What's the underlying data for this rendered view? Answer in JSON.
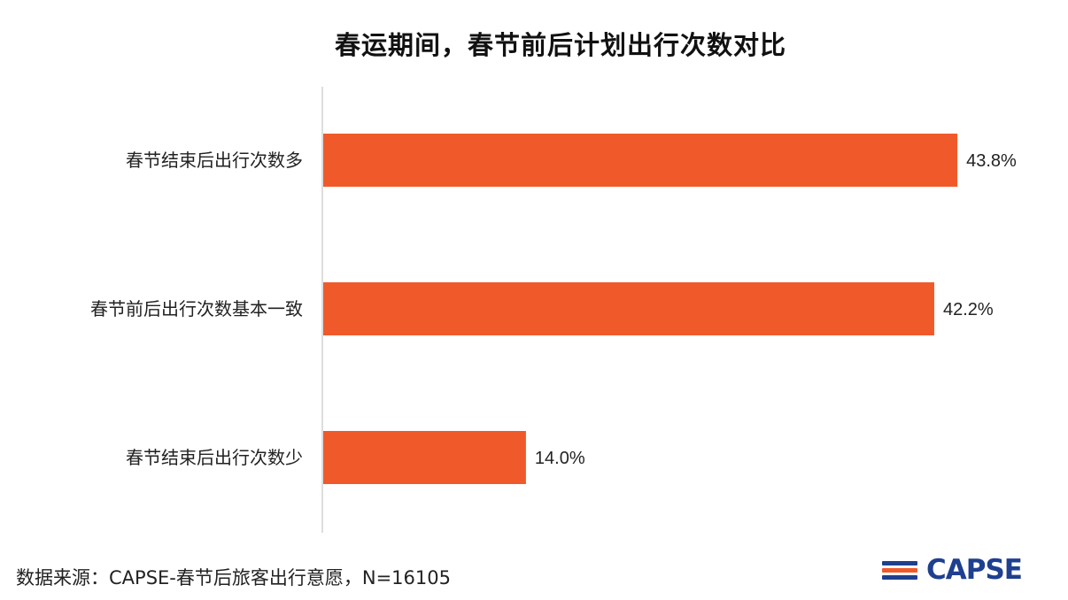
{
  "chart_data": {
    "type": "bar",
    "orientation": "horizontal",
    "title": "春运期间，春节前后计划出行次数对比",
    "categories": [
      "春节结束后出行次数多",
      "春节前后出行次数基本一致",
      "春节结束后出行次数少"
    ],
    "values": [
      43.8,
      42.2,
      14.0
    ],
    "value_labels": [
      "43.8%",
      "42.2%",
      "14.0%"
    ],
    "unit": "%",
    "xlim": [
      0,
      50
    ],
    "grid": false,
    "legend": "none",
    "bar_color": "#f05a2b"
  },
  "footer": {
    "source": "数据来源：CAPSE-春节后旅客出行意愿，N=16105"
  },
  "logo": {
    "text": "CAPSE",
    "colors": [
      "#1f3f8f",
      "#f05a2b"
    ]
  }
}
